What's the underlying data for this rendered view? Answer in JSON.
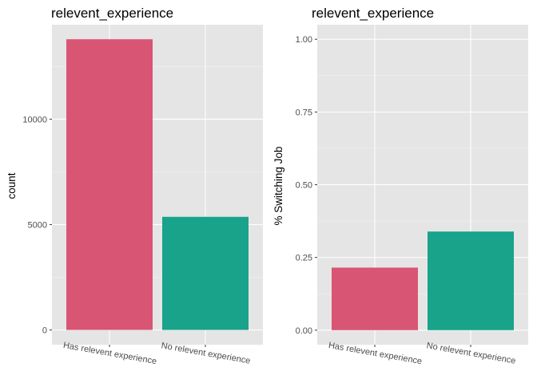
{
  "chart_data": [
    {
      "type": "bar",
      "title": "relevent_experience",
      "xlabel": "",
      "ylabel": "count",
      "categories": [
        "Has relevent experience",
        "No relevent experience"
      ],
      "values": [
        13792,
        5366
      ],
      "colors": [
        "#D95574",
        "#18A38A"
      ],
      "ylim": [
        -700,
        14480
      ],
      "yticks": [
        0,
        5000,
        10000
      ],
      "ytick_labels": [
        "0",
        "5000",
        "10000"
      ],
      "grid": true,
      "legend": "none"
    },
    {
      "type": "bar",
      "title": "relevent_experience",
      "xlabel": "",
      "ylabel": "% Switching Job",
      "categories": [
        "Has relevent experience",
        "No relevent experience"
      ],
      "values": [
        0.215,
        0.339
      ],
      "colors": [
        "#D95574",
        "#18A38A"
      ],
      "ylim": [
        -0.05,
        1.05
      ],
      "yticks": [
        0,
        0.25,
        0.5,
        0.75,
        1.0
      ],
      "ytick_labels": [
        "0.00",
        "0.25",
        "0.50",
        "0.75",
        "1.00"
      ],
      "grid": true,
      "legend": "none"
    }
  ]
}
